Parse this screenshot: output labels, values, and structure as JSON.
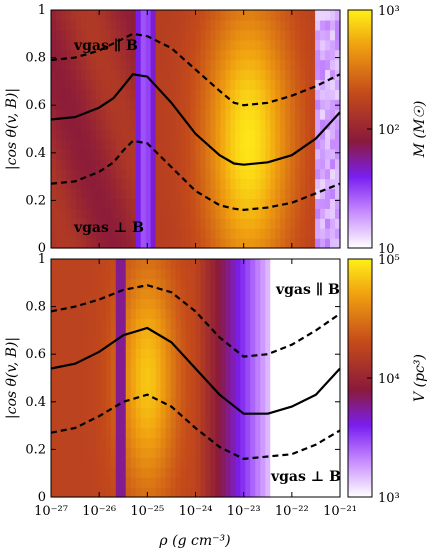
{
  "chart_data": [
    {
      "type": "heatmap",
      "panel": "top",
      "x_scale": "log",
      "xlim": [
        1e-27,
        1e-21
      ],
      "ylim": [
        0,
        1
      ],
      "ylabel": "|cos θ(v, B)|",
      "x_tick_labels": [
        "10⁻²⁷",
        "10⁻²⁶",
        "10⁻²⁵",
        "10⁻²⁴",
        "10⁻²³",
        "10⁻²²",
        "10⁻²¹"
      ],
      "y_tick_labels": [
        "0",
        "0.2",
        "0.4",
        "0.6",
        "0.8",
        "1"
      ],
      "colorbar": {
        "label": "M (M☉)",
        "scale": "log",
        "range": [
          10,
          1000
        ],
        "tick_labels": [
          "10",
          "10²",
          "10³"
        ]
      },
      "annotations": {
        "parallel": "vgas ∥ B",
        "perpendicular": "vgas ⊥ B"
      },
      "series": [
        {
          "name": "",
          "style": "solid",
          "x": [
            -27,
            -26.5,
            -26,
            -25.7,
            -25.5,
            -25.3,
            -25,
            -24.5,
            -24,
            -23.5,
            -23.2,
            -23,
            -22.5,
            -22,
            -21.5,
            -21
          ],
          "y": [
            0.54,
            0.55,
            0.59,
            0.63,
            0.68,
            0.73,
            0.72,
            0.61,
            0.48,
            0.39,
            0.355,
            0.35,
            0.36,
            0.39,
            0.46,
            0.57
          ]
        },
        {
          "name": "",
          "style": "dashed",
          "x": [
            -27,
            -26.5,
            -26,
            -25.7,
            -25.5,
            -25.3,
            -25,
            -24.5,
            -24,
            -23.5,
            -23.2,
            -23,
            -22.5,
            -22,
            -21.5,
            -21
          ],
          "y": [
            0.79,
            0.8,
            0.83,
            0.86,
            0.88,
            0.9,
            0.89,
            0.84,
            0.75,
            0.66,
            0.61,
            0.6,
            0.61,
            0.64,
            0.68,
            0.73
          ]
        },
        {
          "name": "",
          "style": "dashed",
          "x": [
            -27,
            -26.5,
            -26,
            -25.7,
            -25.5,
            -25.3,
            -25,
            -24.5,
            -24,
            -23.5,
            -23.2,
            -23,
            -22.5,
            -22,
            -21.5,
            -21
          ],
          "y": [
            0.27,
            0.28,
            0.32,
            0.36,
            0.41,
            0.45,
            0.44,
            0.34,
            0.24,
            0.18,
            0.165,
            0.16,
            0.17,
            0.19,
            0.23,
            0.27
          ]
        }
      ]
    },
    {
      "type": "heatmap",
      "panel": "bottom",
      "x_scale": "log",
      "xlim": [
        1e-27,
        1e-21
      ],
      "ylim": [
        0,
        1
      ],
      "xlabel": "ρ (g cm⁻³)",
      "ylabel": "|cos θ(v, B)|",
      "x_tick_labels": [
        "10⁻²⁷",
        "10⁻²⁶",
        "10⁻²⁵",
        "10⁻²⁴",
        "10⁻²³",
        "10⁻²²",
        "10⁻²¹"
      ],
      "y_tick_labels": [
        "0",
        "0.2",
        "0.4",
        "0.6",
        "0.8",
        "1"
      ],
      "colorbar": {
        "label": "V (pc³)",
        "scale": "log",
        "range": [
          1000,
          100000
        ],
        "tick_labels": [
          "10³",
          "10⁴",
          "10⁵"
        ]
      },
      "annotations": {
        "parallel": "vgas ∥ B",
        "perpendicular": "vgas ⊥ B"
      },
      "series": [
        {
          "name": "",
          "style": "solid",
          "x": [
            -27,
            -26.5,
            -26,
            -25.5,
            -25,
            -24.5,
            -24,
            -23.5,
            -23,
            -22.5,
            -22,
            -21.5,
            -21
          ],
          "y": [
            0.54,
            0.56,
            0.61,
            0.68,
            0.71,
            0.65,
            0.54,
            0.43,
            0.35,
            0.35,
            0.38,
            0.43,
            0.54
          ]
        },
        {
          "name": "",
          "style": "dashed",
          "x": [
            -27,
            -26.5,
            -26,
            -25.5,
            -25,
            -24.5,
            -24,
            -23.5,
            -23,
            -22.5,
            -22,
            -21.5,
            -21
          ],
          "y": [
            0.78,
            0.8,
            0.83,
            0.87,
            0.89,
            0.86,
            0.78,
            0.67,
            0.59,
            0.6,
            0.64,
            0.7,
            0.77
          ]
        },
        {
          "name": "",
          "style": "dashed",
          "x": [
            -27,
            -26.5,
            -26,
            -25.5,
            -25,
            -24.5,
            -24,
            -23.5,
            -23,
            -22.5,
            -22,
            -21.5,
            -21
          ],
          "y": [
            0.27,
            0.29,
            0.34,
            0.4,
            0.43,
            0.38,
            0.29,
            0.21,
            0.16,
            0.17,
            0.18,
            0.22,
            0.28
          ]
        }
      ]
    }
  ]
}
